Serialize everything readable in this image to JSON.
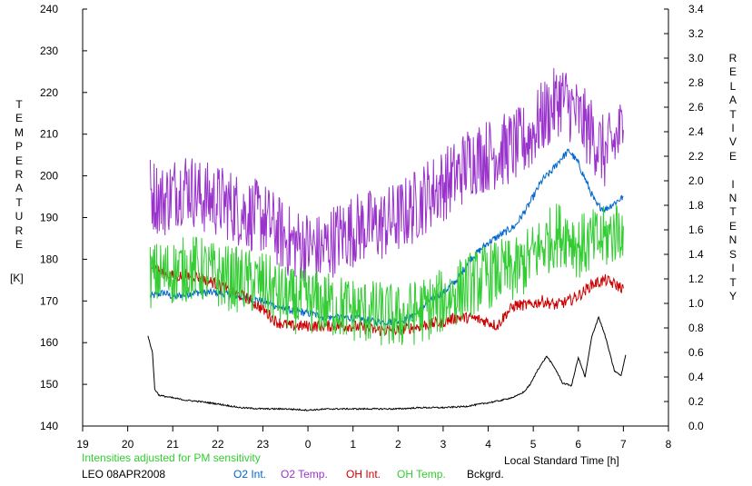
{
  "chart_data": {
    "type": "line",
    "left_axis_label": "TEMPERATURE",
    "left_axis_unit": "[K]",
    "right_axis_label": "RELATIVE INTENSITY",
    "xlabel": "Local Standard Time [h]",
    "xlim": [
      19,
      32
    ],
    "x_tick_labels": [
      "19",
      "20",
      "21",
      "22",
      "23",
      "0",
      "1",
      "2",
      "3",
      "4",
      "5",
      "6",
      "7",
      "8"
    ],
    "ylim_left": [
      140,
      240
    ],
    "y_left_ticks": [
      140,
      150,
      160,
      170,
      180,
      190,
      200,
      210,
      220,
      230,
      240
    ],
    "ylim_right": [
      0.0,
      3.4
    ],
    "y_right_ticks": [
      "0.0",
      "0.2",
      "0.4",
      "0.6",
      "0.8",
      "1.0",
      "1.2",
      "1.4",
      "1.6",
      "1.8",
      "2.0",
      "2.2",
      "2.4",
      "2.6",
      "2.8",
      "3.0",
      "3.2",
      "3.4"
    ],
    "grid": false,
    "note": "Intensities adjusted for PM sensitivity",
    "site_date": "LEO 08APR2008",
    "legend_position": "bottom",
    "series": [
      {
        "name": "O2 Int.",
        "axis": "left",
        "color": "#0066cc",
        "x": [
          20.5,
          20.8,
          21.0,
          21.5,
          22.0,
          22.5,
          23.0,
          23.5,
          24.0,
          24.5,
          25.0,
          25.5,
          26.0,
          26.3,
          26.7,
          27.0,
          27.3,
          27.6,
          28.0,
          28.3,
          28.6,
          28.9,
          29.2,
          29.4,
          29.6,
          29.8,
          30.0,
          30.2,
          30.4,
          30.6,
          31.0
        ],
        "y": [
          171,
          172,
          171,
          172,
          172,
          171,
          170,
          168,
          167,
          166,
          166,
          165,
          165,
          166,
          170,
          172,
          175,
          180,
          184,
          186,
          188,
          193,
          199,
          201,
          204,
          206,
          203,
          198,
          193,
          192,
          195
        ]
      },
      {
        "name": "O2 Temp.",
        "axis": "left",
        "color": "#9933cc",
        "x": [
          20.5,
          20.8,
          21.0,
          21.3,
          21.6,
          22.0,
          22.3,
          22.6,
          23.0,
          23.3,
          23.6,
          24.0,
          24.3,
          24.6,
          25.0,
          25.3,
          25.6,
          26.0,
          26.3,
          26.6,
          27.0,
          27.3,
          27.6,
          28.0,
          28.3,
          28.6,
          28.9,
          29.2,
          29.4,
          29.6,
          29.8,
          30.0,
          30.3,
          30.6,
          31.0
        ],
        "y": [
          196,
          194,
          196,
          198,
          195,
          194,
          193,
          191,
          190,
          187,
          184,
          183,
          182,
          185,
          187,
          188,
          188,
          190,
          192,
          195,
          198,
          200,
          204,
          205,
          206,
          207,
          209,
          214,
          216,
          219,
          217,
          214,
          210,
          205,
          211
        ]
      },
      {
        "name": "OH Int.",
        "axis": "left",
        "color": "#cc0000",
        "x": [
          20.5,
          20.7,
          21.0,
          21.5,
          22.0,
          22.3,
          22.6,
          23.0,
          23.3,
          23.6,
          24.0,
          24.5,
          25.0,
          25.5,
          26.0,
          26.5,
          27.0,
          27.3,
          27.6,
          28.0,
          28.2,
          28.4,
          28.6,
          28.9,
          29.2,
          29.5,
          29.8,
          30.1,
          30.3,
          30.6,
          31.0
        ],
        "y": [
          179,
          177,
          176,
          176,
          174,
          172,
          171,
          168,
          165,
          164,
          164,
          164,
          164,
          163,
          163,
          164,
          165,
          166,
          166,
          165,
          164,
          167,
          169,
          169,
          170,
          169,
          170,
          172,
          174,
          175,
          173
        ]
      },
      {
        "name": "OH Temp.",
        "axis": "left",
        "color": "#33cc33",
        "x": [
          20.5,
          21.0,
          21.5,
          22.0,
          22.5,
          23.0,
          23.3,
          23.6,
          24.0,
          24.5,
          25.0,
          25.5,
          26.0,
          26.3,
          26.6,
          27.0,
          27.3,
          27.6,
          28.0,
          28.3,
          28.6,
          28.9,
          29.2,
          29.5,
          29.8,
          30.0,
          30.3,
          30.6,
          31.0
        ],
        "y": [
          176,
          177,
          178,
          176,
          175,
          174,
          172,
          170,
          170,
          169,
          168,
          167,
          166,
          167,
          168,
          170,
          172,
          174,
          176,
          177,
          177,
          180,
          183,
          186,
          186,
          183,
          184,
          185,
          188
        ]
      },
      {
        "name": "Bckgrd.",
        "axis": "right",
        "color": "#000000",
        "x": [
          20.45,
          20.55,
          20.6,
          20.7,
          21.0,
          21.3,
          21.6,
          22.0,
          22.5,
          23.0,
          23.5,
          24.0,
          24.5,
          25.0,
          25.5,
          26.0,
          26.5,
          27.0,
          27.5,
          28.0,
          28.3,
          28.6,
          28.8,
          28.95,
          29.1,
          29.3,
          29.5,
          29.65,
          29.85,
          30.0,
          30.15,
          30.3,
          30.45,
          30.6,
          30.8,
          30.95,
          31.05
        ],
        "y": [
          0.73,
          0.6,
          0.3,
          0.25,
          0.23,
          0.21,
          0.2,
          0.18,
          0.15,
          0.14,
          0.14,
          0.13,
          0.14,
          0.14,
          0.14,
          0.14,
          0.15,
          0.15,
          0.16,
          0.19,
          0.21,
          0.24,
          0.28,
          0.35,
          0.46,
          0.57,
          0.46,
          0.35,
          0.33,
          0.56,
          0.4,
          0.73,
          0.89,
          0.73,
          0.45,
          0.41,
          0.58
        ]
      }
    ]
  }
}
